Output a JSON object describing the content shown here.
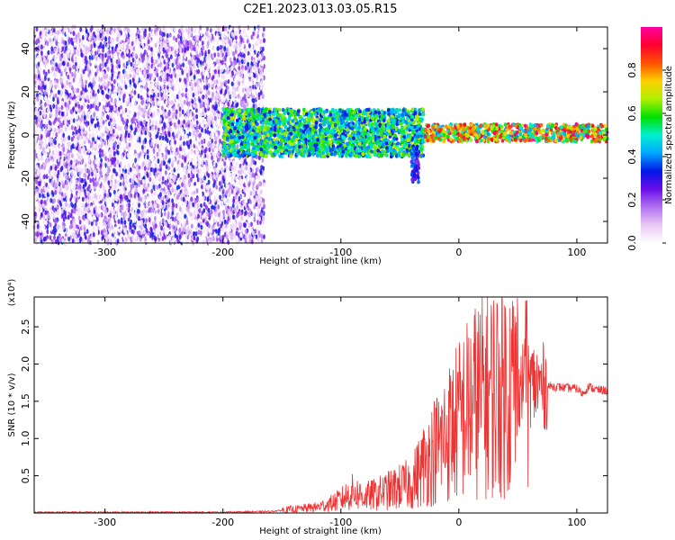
{
  "title": "C2E1.2023.013.03.05.R15",
  "chart_data": [
    {
      "type": "heatmap",
      "xlabel": "Height of straight line (km)",
      "ylabel": "Frequency (Hz)",
      "xlim": [
        -360,
        126
      ],
      "ylim": [
        -50,
        50
      ],
      "xticks": [
        -300,
        -200,
        -100,
        0,
        100
      ],
      "yticks": [
        -40,
        -20,
        0,
        20,
        40
      ],
      "colorbar": {
        "label": "Normalized spectral amplitude",
        "range": [
          0.0,
          1.0
        ],
        "ticks": [
          "0.0",
          "0.2",
          "0.4",
          "0.6",
          "0.8"
        ],
        "colors": [
          "#ffffff",
          "#e9c8f5",
          "#b070f0",
          "#6a0ce8",
          "#0018e6",
          "#00a8ff",
          "#00f0d0",
          "#00e000",
          "#b0f000",
          "#ffd000",
          "#ff5000",
          "#ff0030",
          "#ff00a0"
        ]
      },
      "regions": [
        {
          "x_range": [
            -360,
            -165
          ],
          "freq_range": [
            -50,
            50
          ],
          "description": "noise",
          "amplitude": [
            0.0,
            0.35
          ]
        },
        {
          "x_range": [
            -200,
            -30
          ],
          "freq_range": [
            -10,
            12
          ],
          "description": "signal band",
          "amplitude": [
            0.3,
            0.7
          ]
        },
        {
          "x_range": [
            -40,
            -34
          ],
          "freq_range": [
            -22,
            -5
          ],
          "description": "signal band",
          "amplitude": [
            0.2,
            0.4
          ]
        },
        {
          "x_range": [
            -30,
            126
          ],
          "freq_range": [
            -3,
            5
          ],
          "description": "signal band",
          "amplitude": [
            0.4,
            1.0
          ]
        }
      ]
    },
    {
      "type": "line",
      "xlabel": "Height of straight line (km)",
      "ylabel": "SNR (10 * v/v)",
      "ymultiplier": "(x10⁴)",
      "xlim": [
        -360,
        126
      ],
      "ylim": [
        0,
        2.9
      ],
      "xticks": [
        -300,
        -200,
        -100,
        0,
        100
      ],
      "yticks": [
        0.5,
        1.0,
        1.5,
        2.0,
        2.5
      ],
      "color": "#ee3333",
      "series": [
        {
          "x": [
            -360,
            -300,
            -250,
            -200,
            -160,
            -140,
            -120,
            -110,
            -100,
            -90,
            -80,
            -70,
            -60,
            -50,
            -40,
            -30,
            -20,
            -10,
            0,
            10,
            20,
            30,
            40,
            50,
            55,
            60,
            65,
            70,
            80,
            90,
            100,
            105,
            110,
            115,
            120,
            126
          ],
          "y": [
            0.01,
            0.01,
            0.01,
            0.01,
            0.02,
            0.05,
            0.08,
            0.12,
            0.18,
            0.28,
            0.22,
            0.25,
            0.3,
            0.35,
            0.4,
            0.65,
            0.85,
            1.05,
            1.25,
            1.45,
            1.6,
            1.65,
            1.7,
            1.72,
            1.75,
            1.75,
            1.72,
            1.7,
            1.7,
            1.68,
            1.67,
            1.6,
            1.7,
            1.66,
            1.65,
            1.64
          ]
        }
      ]
    }
  ]
}
